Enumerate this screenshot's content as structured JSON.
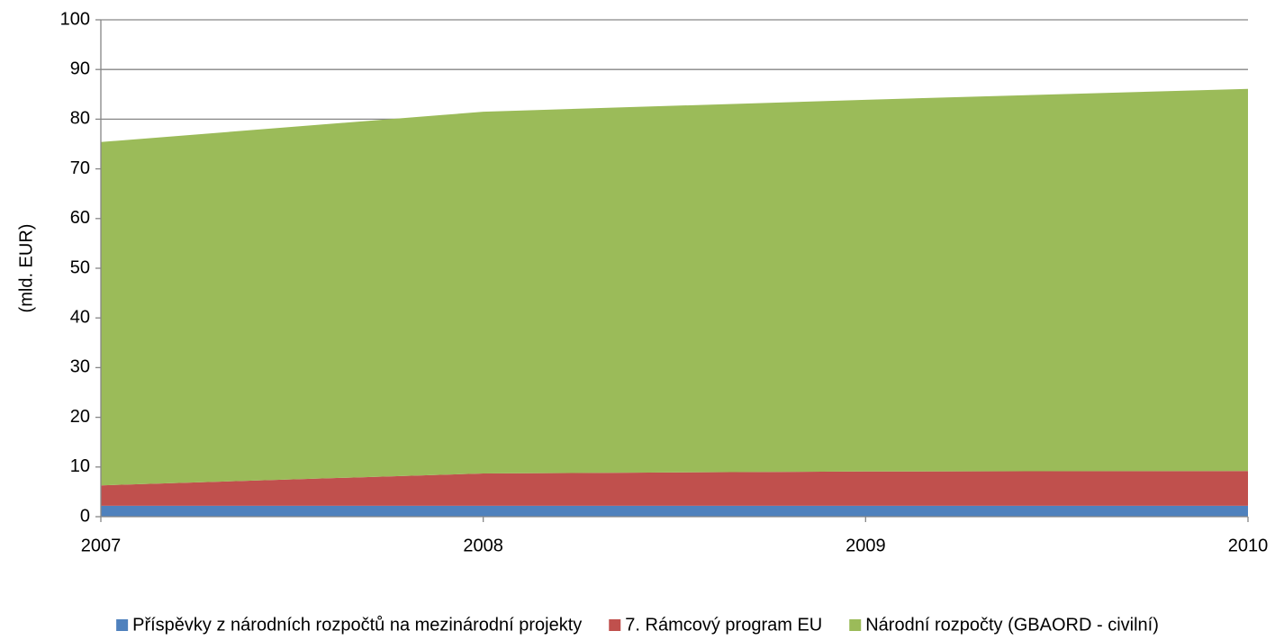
{
  "chart_data": {
    "type": "stacked_area",
    "y_label": "(mld. EUR)",
    "categories": [
      "2007",
      "2008",
      "2009",
      "2010"
    ],
    "series": [
      {
        "name": "Příspěvky z národních rozpočtů na mezinárodní projekty",
        "color": "#4f81bd",
        "values": [
          2.2,
          2.2,
          2.2,
          2.2
        ]
      },
      {
        "name": "7. Rámcový program EU",
        "color": "#c0504d",
        "values": [
          4.1,
          6.5,
          6.9,
          7.0
        ]
      },
      {
        "name": "Národní rozpočty (GBAORD - civilní)",
        "color": "#9bbb59",
        "values": [
          69.1,
          72.8,
          74.8,
          76.9
        ]
      }
    ],
    "ylim": [
      0,
      100
    ],
    "yticks": [
      0,
      10,
      20,
      30,
      40,
      50,
      60,
      70,
      80,
      90,
      100
    ],
    "grid": true,
    "legend": "bottom"
  }
}
